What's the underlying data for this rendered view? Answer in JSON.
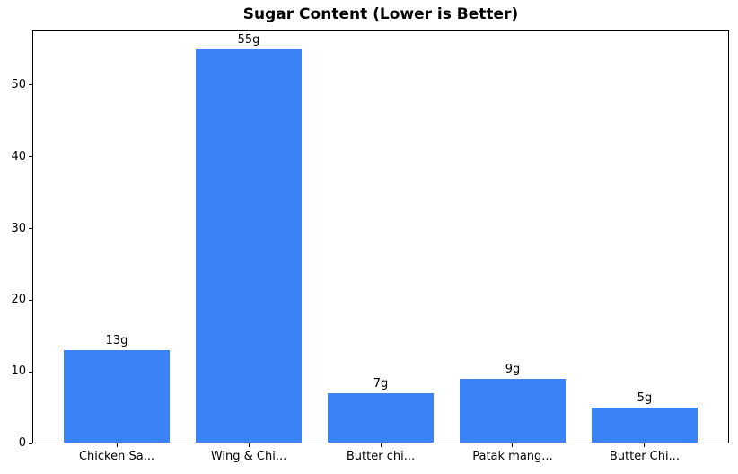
{
  "chart_data": {
    "type": "bar",
    "title": "Sugar Content (Lower is Better)",
    "categories": [
      "Chicken Sa...",
      "Wing & Chi...",
      "Butter chi...",
      "Patak mang...",
      "Butter Chi..."
    ],
    "values": [
      13,
      55,
      7,
      9,
      5
    ],
    "bar_labels": [
      "13g",
      "55g",
      "7g",
      "9g",
      "5g"
    ],
    "xlabel": "",
    "ylabel": "",
    "ylim": [
      0,
      57.75
    ],
    "yticks": [
      0,
      10,
      20,
      30,
      40,
      50
    ],
    "xlim": [
      -0.64,
      4.64
    ],
    "bar_width_units": 0.8,
    "bar_color": "#3b82f6",
    "grid": false,
    "legend_position": "none"
  }
}
